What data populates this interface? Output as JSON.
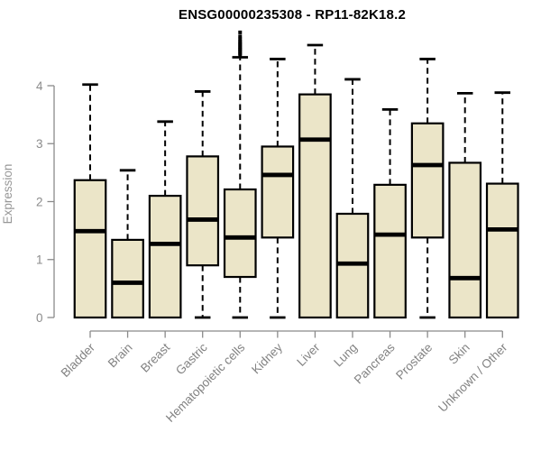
{
  "chart_data": {
    "type": "boxplot",
    "title": "ENSG00000235308 - RP11-82K18.2",
    "xlabel": "",
    "ylabel": "Expression",
    "ylim": [
      0,
      4.95
    ],
    "yticks": [
      0,
      1,
      2,
      3,
      4
    ],
    "grid": false,
    "legend": "none",
    "categories": [
      "Bladder",
      "Brain",
      "Breast",
      "Gastric",
      "Hematopoietic cells",
      "Kidney",
      "Liver",
      "Lung",
      "Pancreas",
      "Prostate",
      "Skin",
      "Unknown / Other"
    ],
    "boxes": [
      {
        "label": "Bladder",
        "min": 0,
        "q1": 0,
        "median": 1.49,
        "q3": 2.37,
        "max": 4.02,
        "outliers": []
      },
      {
        "label": "Brain",
        "min": 0,
        "q1": 0,
        "median": 0.6,
        "q3": 1.34,
        "max": 2.54,
        "outliers": []
      },
      {
        "label": "Breast",
        "min": 0,
        "q1": 0,
        "median": 1.27,
        "q3": 2.1,
        "max": 3.38,
        "outliers": []
      },
      {
        "label": "Gastric",
        "min": 0,
        "q1": 0.9,
        "median": 1.69,
        "q3": 2.78,
        "max": 3.9,
        "outliers": []
      },
      {
        "label": "Hematopoietic cells",
        "min": 0,
        "q1": 0.7,
        "median": 1.38,
        "q3": 2.21,
        "max": 4.49,
        "outliers": [
          4.53,
          4.56,
          4.59,
          4.62,
          4.64,
          4.67,
          4.7,
          4.73,
          4.76,
          4.8,
          4.85,
          4.92
        ]
      },
      {
        "label": "Kidney",
        "min": 0,
        "q1": 1.38,
        "median": 2.46,
        "q3": 2.95,
        "max": 4.46,
        "outliers": []
      },
      {
        "label": "Liver",
        "min": 0,
        "q1": 0,
        "median": 3.07,
        "q3": 3.85,
        "max": 4.7,
        "outliers": []
      },
      {
        "label": "Lung",
        "min": 0,
        "q1": 0,
        "median": 0.93,
        "q3": 1.79,
        "max": 4.11,
        "outliers": []
      },
      {
        "label": "Pancreas",
        "min": 0,
        "q1": 0,
        "median": 1.43,
        "q3": 2.29,
        "max": 3.59,
        "outliers": []
      },
      {
        "label": "Prostate",
        "min": 0,
        "q1": 1.38,
        "median": 2.63,
        "q3": 3.35,
        "max": 4.46,
        "outliers": []
      },
      {
        "label": "Skin",
        "min": 0,
        "q1": 0,
        "median": 0.68,
        "q3": 2.67,
        "max": 3.87,
        "outliers": []
      },
      {
        "label": "Unknown / Other",
        "min": 0,
        "q1": 0,
        "median": 1.52,
        "q3": 2.31,
        "max": 3.88,
        "outliers": []
      }
    ]
  },
  "style": {
    "background": "#ffffff",
    "box_fill": "#ebe5c8",
    "box_stroke": "#000000",
    "median_color": "#000000",
    "whisker_color": "#000000",
    "outlier_color": "#000000",
    "axis_color": "#8a8a8a",
    "tick_label_color": "#8b8b8b",
    "x_label_color": "#828282",
    "ylabel_color": "#979797",
    "title_color": "#000000"
  }
}
